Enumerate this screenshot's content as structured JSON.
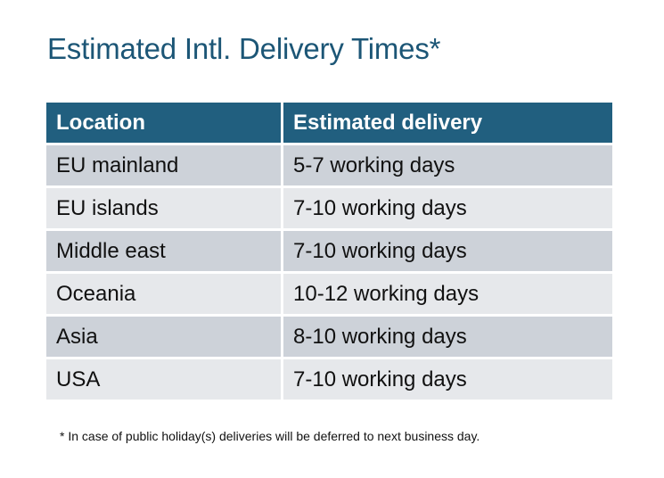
{
  "title": "Estimated Intl. Delivery Times*",
  "table": {
    "headers": [
      "Location",
      "Estimated delivery"
    ],
    "rows": [
      [
        "EU mainland",
        "5-7 working days"
      ],
      [
        "EU islands",
        "7-10 working days"
      ],
      [
        "Middle east",
        "7-10 working days"
      ],
      [
        "Oceania",
        "10-12 working days"
      ],
      [
        "Asia",
        "8-10 working days"
      ],
      [
        "USA",
        "7-10 working days"
      ]
    ]
  },
  "footnote": "* In case of public holiday(s) deliveries will be deferred to next business day.",
  "colors": {
    "header": "#215f7f",
    "title": "#1c5676",
    "row_dark": "#cdd2d9",
    "row_light": "#e6e8eb"
  }
}
